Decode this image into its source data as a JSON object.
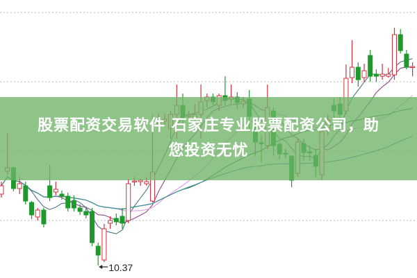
{
  "banner": {
    "line1": "股票配资交易软件 石家庄专业股票配资公司，助",
    "line2": "您投资无忧"
  },
  "chart_data": {
    "type": "candlestick",
    "grid": true,
    "up_color": "#d2303c",
    "down_color": "#1e9a2c",
    "annotation": {
      "label": "10.37",
      "candle_index": 16
    },
    "candles_ohlc": [
      [
        11.4,
        11.52,
        11.58,
        11.35
      ],
      [
        11.73,
        11.78,
        12.28,
        11.68
      ],
      [
        11.78,
        11.48,
        11.8,
        11.44
      ],
      [
        11.48,
        11.55,
        11.65,
        11.4
      ],
      [
        11.52,
        11.3,
        11.58,
        11.25
      ],
      [
        11.28,
        11.1,
        11.3,
        11.04
      ],
      [
        11.07,
        11.17,
        11.2,
        11.02
      ],
      [
        11.17,
        10.97,
        11.2,
        10.92
      ],
      [
        11.52,
        11.35,
        11.82,
        11.3
      ],
      [
        11.43,
        11.47,
        11.58,
        11.38
      ],
      [
        11.4,
        11.37,
        11.45,
        11.32
      ],
      [
        11.37,
        11.2,
        11.42,
        11.15
      ],
      [
        11.3,
        11.2,
        11.38,
        11.15
      ],
      [
        11.2,
        11.15,
        11.25,
        11.1
      ],
      [
        11.15,
        11.1,
        11.22,
        11.05
      ],
      [
        11.15,
        10.7,
        11.2,
        10.65
      ],
      [
        10.65,
        10.52,
        10.7,
        10.37
      ],
      [
        10.45,
        10.9,
        10.97,
        10.42
      ],
      [
        10.98,
        11.02,
        11.08,
        10.9
      ],
      [
        11.05,
        11.0,
        11.12,
        10.95
      ],
      [
        11.08,
        10.98,
        11.2,
        10.9
      ],
      [
        11.02,
        11.55,
        11.62,
        10.98
      ],
      [
        11.58,
        11.59,
        11.65,
        11.52
      ],
      [
        11.58,
        11.6,
        11.62,
        11.52
      ],
      [
        11.55,
        11.58,
        11.65,
        11.52
      ],
      [
        11.3,
        11.72,
        12.55,
        11.28
      ],
      [
        12.42,
        12.45,
        12.57,
        12.4
      ],
      [
        12.45,
        12.48,
        12.55,
        12.4
      ],
      [
        12.35,
        12.55,
        12.6,
        12.2
      ],
      [
        12.55,
        12.68,
        12.98,
        12.2
      ],
      [
        12.68,
        12.5,
        12.85,
        12.4
      ],
      [
        12.52,
        12.54,
        12.6,
        12.45
      ],
      [
        12.5,
        12.55,
        12.7,
        12.35
      ],
      [
        12.55,
        12.73,
        12.98,
        12.2
      ],
      [
        12.75,
        12.8,
        12.85,
        12.65
      ],
      [
        12.8,
        12.73,
        12.85,
        12.68
      ],
      [
        12.68,
        12.82,
        12.85,
        12.6
      ],
      [
        12.82,
        12.75,
        13.1,
        12.68
      ],
      [
        12.77,
        12.8,
        12.98,
        12.7
      ],
      [
        12.8,
        12.72,
        12.87,
        12.62
      ],
      [
        12.7,
        12.74,
        12.8,
        12.65
      ],
      [
        12.77,
        12.52,
        12.9,
        12.3
      ],
      [
        12.4,
        12.15,
        12.45,
        11.95
      ],
      [
        12.14,
        12.13,
        12.25,
        11.85
      ],
      [
        12.1,
        12.65,
        12.98,
        12.05
      ],
      [
        12.6,
        12.1,
        12.65,
        11.95
      ],
      [
        12.12,
        11.98,
        12.15,
        11.9
      ],
      [
        11.99,
        11.98,
        12.05,
        11.92
      ],
      [
        11.95,
        11.6,
        11.95,
        11.5
      ],
      [
        11.7,
        12.15,
        12.2,
        11.65
      ],
      [
        12.13,
        12.0,
        12.2,
        11.88
      ],
      [
        12.01,
        12.0,
        12.1,
        11.88
      ],
      [
        11.96,
        11.8,
        12.05,
        11.65
      ],
      [
        11.68,
        12.3,
        12.3,
        11.6
      ],
      [
        12.32,
        12.47,
        12.55,
        12.25
      ],
      [
        12.68,
        12.6,
        12.78,
        12.5
      ],
      [
        12.7,
        12.55,
        12.8,
        12.45
      ],
      [
        12.6,
        13.07,
        13.27,
        12.55
      ],
      [
        13.08,
        13.23,
        13.62,
        13.0
      ],
      [
        13.23,
        13.05,
        13.3,
        12.95
      ],
      [
        13.08,
        13.18,
        13.28,
        13.02
      ],
      [
        13.4,
        13.1,
        13.48,
        13.02
      ],
      [
        13.13,
        13.1,
        13.2,
        13.02
      ],
      [
        13.1,
        13.13,
        13.28,
        13.05
      ],
      [
        13.1,
        13.13,
        13.22,
        13.08
      ],
      [
        13.12,
        13.7,
        13.8,
        13.05
      ],
      [
        13.7,
        13.47,
        13.78,
        13.43
      ],
      [
        13.42,
        13.23,
        13.48,
        13.2
      ],
      [
        13.23,
        13.24,
        13.3,
        13.1
      ]
    ],
    "moving_averages": [
      {
        "period": 5,
        "color": "#4e7282"
      },
      {
        "period": 10,
        "color": "#8a4a88"
      },
      {
        "period": 20,
        "color": "#e894e8"
      },
      {
        "period": 30,
        "color": "#2f7a3a"
      },
      {
        "period": 60,
        "color": "#3a8c9c"
      }
    ]
  }
}
